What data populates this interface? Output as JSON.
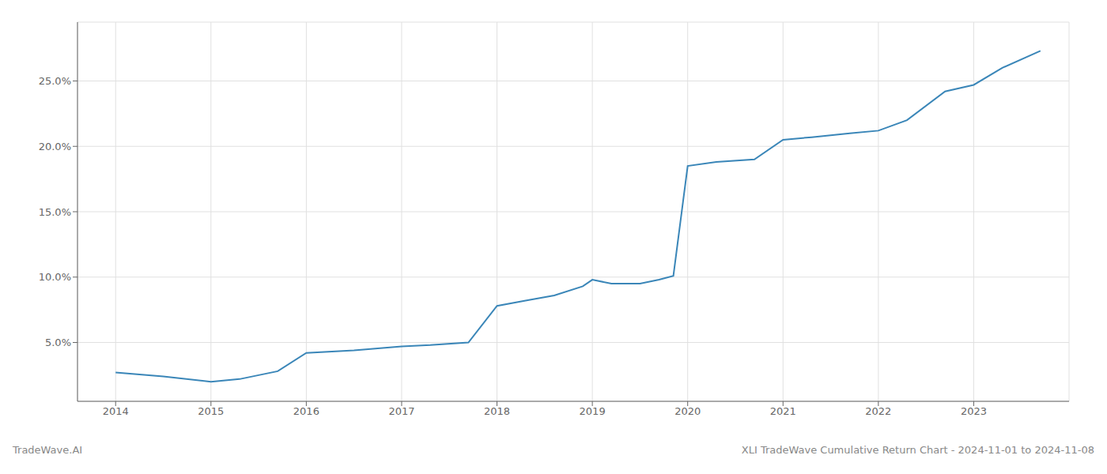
{
  "chart_data": {
    "type": "line",
    "x": [
      2014.0,
      2014.5,
      2015.0,
      2015.3,
      2015.7,
      2016.0,
      2016.5,
      2017.0,
      2017.3,
      2017.7,
      2018.0,
      2018.3,
      2018.6,
      2018.9,
      2019.0,
      2019.2,
      2019.5,
      2019.7,
      2019.85,
      2020.0,
      2020.3,
      2020.7,
      2021.0,
      2021.3,
      2021.7,
      2022.0,
      2022.3,
      2022.7,
      2023.0,
      2023.3,
      2023.7
    ],
    "values": [
      2.7,
      2.4,
      2.0,
      2.2,
      2.8,
      4.2,
      4.4,
      4.7,
      4.8,
      5.0,
      7.8,
      8.2,
      8.6,
      9.3,
      9.8,
      9.5,
      9.5,
      9.8,
      10.1,
      18.5,
      18.8,
      19.0,
      20.5,
      20.7,
      21.0,
      21.2,
      22.0,
      24.2,
      24.7,
      26.0,
      27.3
    ],
    "color": "#3a86b8",
    "xlim": [
      2013.6,
      2024.0
    ],
    "ylim": [
      0.5,
      29.5
    ],
    "xticks": [
      2014,
      2015,
      2016,
      2017,
      2018,
      2019,
      2020,
      2021,
      2022,
      2023
    ],
    "yticks": [
      {
        "value": 5.0,
        "label": "5.0%"
      },
      {
        "value": 10.0,
        "label": "10.0%"
      },
      {
        "value": 15.0,
        "label": "15.0%"
      },
      {
        "value": 20.0,
        "label": "20.0%"
      },
      {
        "value": 25.0,
        "label": "25.0%"
      }
    ],
    "grid": true,
    "annotations": [
      "TradeWave.AI",
      "XLI TradeWave Cumulative Return Chart - 2024-11-01 to 2024-11-08"
    ]
  }
}
